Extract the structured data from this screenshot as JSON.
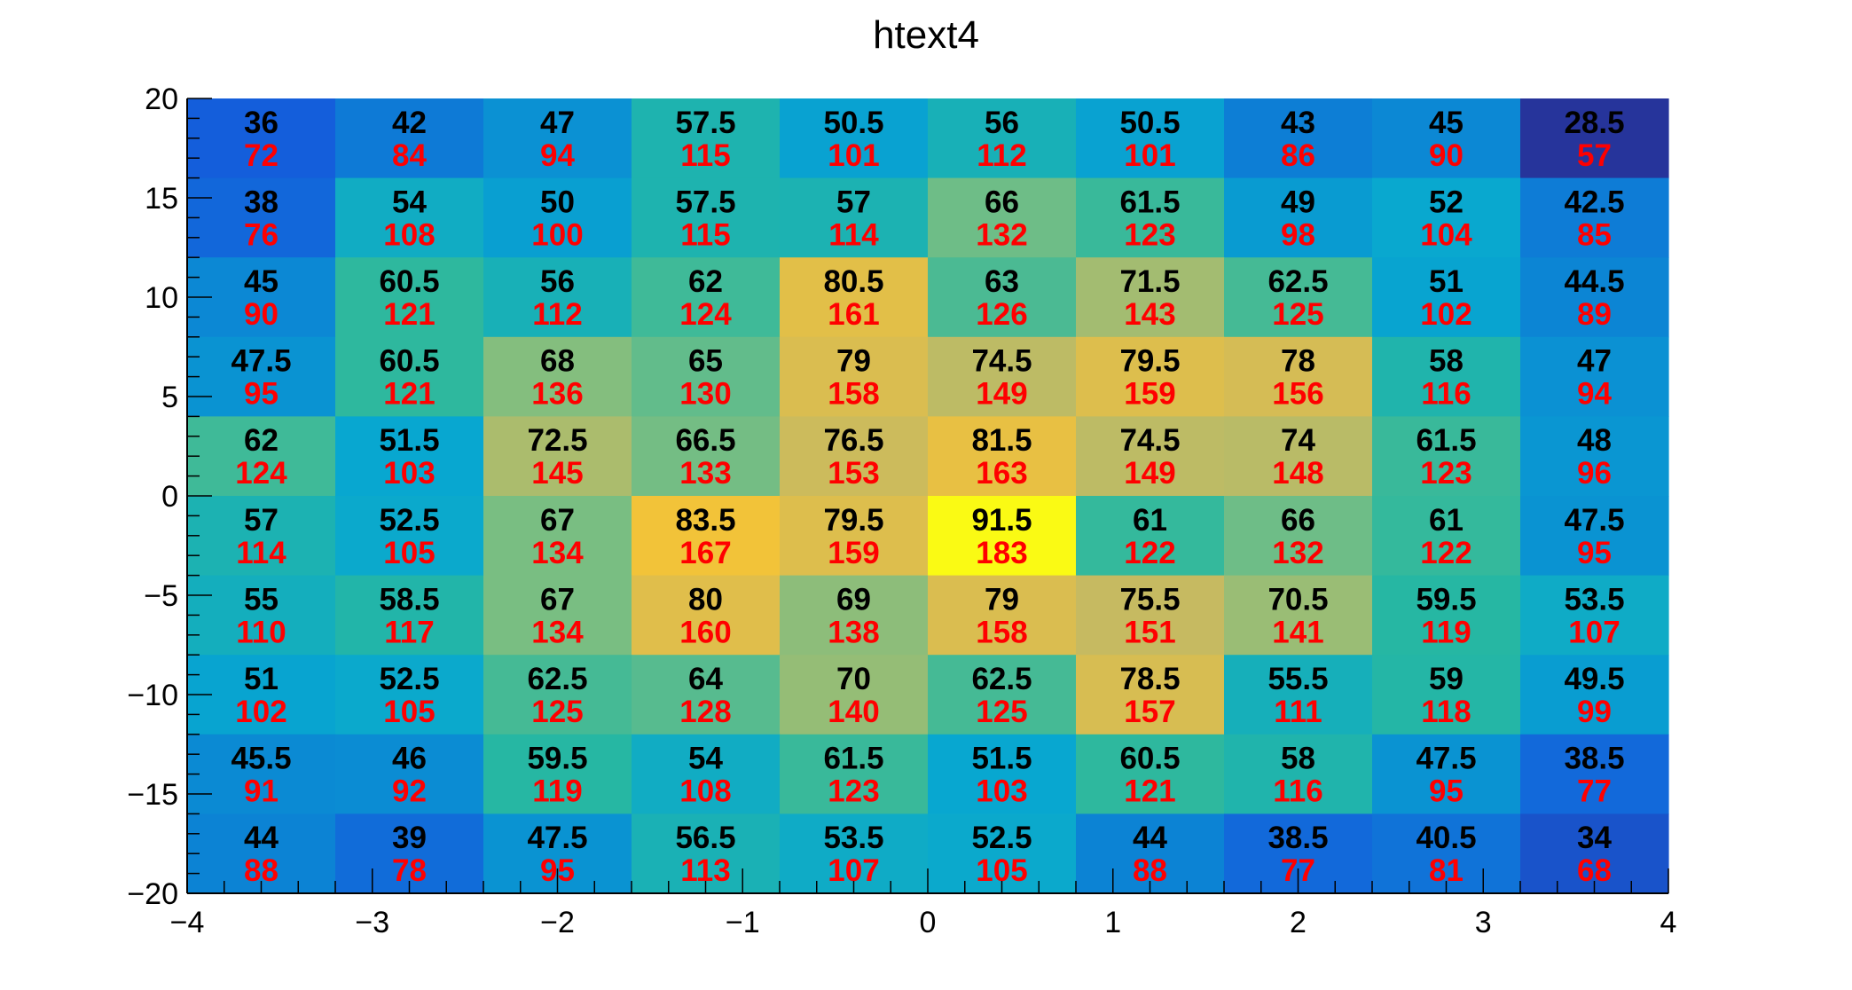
{
  "chart_data": {
    "type": "heatmap",
    "title": "htext4",
    "xlabel": "",
    "ylabel": "",
    "xlim": [
      -4,
      4
    ],
    "ylim": [
      -20,
      20
    ],
    "x_bin_edges": [
      -4,
      -3.2,
      -2.4,
      -1.6,
      -0.8,
      0,
      0.8,
      1.6,
      2.4,
      3.2,
      4
    ],
    "y_bin_edges": [
      -20,
      -16,
      -12,
      -8,
      -4,
      0,
      4,
      8,
      12,
      16,
      20
    ],
    "x_ticks": [
      -4,
      -3,
      -2,
      -1,
      0,
      1,
      2,
      3,
      4
    ],
    "x_tick_labels": [
      "−4",
      "−3",
      "−2",
      "−1",
      "0",
      "1",
      "2",
      "3",
      "4"
    ],
    "y_ticks": [
      20,
      15,
      10,
      5,
      0,
      -5,
      -10,
      -15,
      -20
    ],
    "y_tick_labels": [
      "20",
      "15",
      "10",
      "5",
      "0",
      "−5",
      "−10",
      "−15",
      "−20"
    ],
    "series": [
      {
        "color": "#000000",
        "values": [
          [
            36,
            42,
            47,
            57.5,
            50.5,
            56,
            50.5,
            43,
            45,
            28.5
          ],
          [
            38,
            54,
            50,
            57.5,
            57,
            66,
            61.5,
            49,
            52,
            42.5
          ],
          [
            45,
            60.5,
            56,
            62,
            80.5,
            63,
            71.5,
            62.5,
            51,
            44.5
          ],
          [
            47.5,
            60.5,
            68,
            65,
            79,
            74.5,
            79.5,
            78,
            58,
            47
          ],
          [
            62,
            51.5,
            72.5,
            66.5,
            76.5,
            81.5,
            74.5,
            74,
            61.5,
            48
          ],
          [
            57,
            52.5,
            67,
            83.5,
            79.5,
            91.5,
            61,
            66,
            61,
            47.5
          ],
          [
            55,
            58.5,
            67,
            80,
            69,
            79,
            75.5,
            70.5,
            59.5,
            53.5
          ],
          [
            51,
            52.5,
            62.5,
            64,
            70,
            62.5,
            78.5,
            55.5,
            59,
            49.5
          ],
          [
            45.5,
            46,
            59.5,
            54,
            61.5,
            51.5,
            60.5,
            58,
            47.5,
            38.5
          ],
          [
            44,
            39,
            47.5,
            56.5,
            53.5,
            52.5,
            44,
            38.5,
            40.5,
            34
          ]
        ]
      },
      {
        "color": "#ff0000",
        "values": [
          [
            72,
            84,
            94,
            115,
            101,
            112,
            101,
            86,
            90,
            57
          ],
          [
            76,
            108,
            100,
            115,
            114,
            132,
            123,
            98,
            104,
            85
          ],
          [
            90,
            121,
            112,
            124,
            161,
            126,
            143,
            125,
            102,
            89
          ],
          [
            95,
            121,
            136,
            130,
            158,
            149,
            159,
            156,
            116,
            94
          ],
          [
            124,
            103,
            145,
            133,
            153,
            163,
            149,
            148,
            123,
            96
          ],
          [
            114,
            105,
            134,
            167,
            159,
            183,
            122,
            132,
            122,
            95
          ],
          [
            110,
            117,
            134,
            160,
            138,
            158,
            151,
            141,
            119,
            107
          ],
          [
            102,
            105,
            125,
            128,
            140,
            125,
            157,
            111,
            118,
            99
          ],
          [
            91,
            92,
            119,
            108,
            123,
            103,
            121,
            116,
            95,
            77
          ],
          [
            88,
            78,
            95,
            113,
            107,
            105,
            88,
            77,
            81,
            68
          ]
        ]
      }
    ],
    "row_order": "top-to-bottom",
    "color_scale": "kBird (blue-green-yellow)"
  }
}
